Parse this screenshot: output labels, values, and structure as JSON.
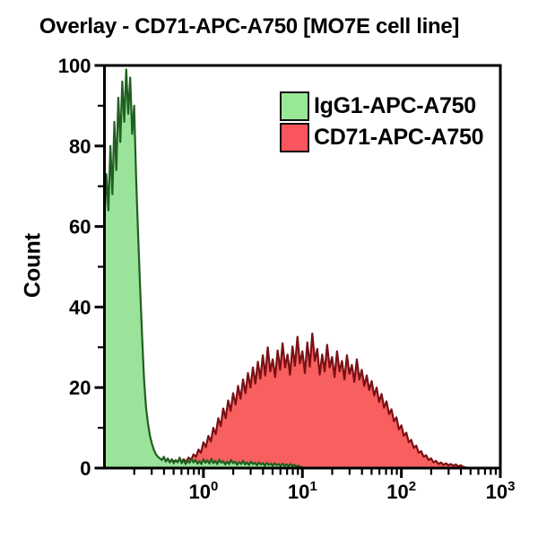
{
  "chart_data": {
    "type": "area",
    "subtype": "flow-cytometry-histogram-overlay",
    "title": "Overlay - CD71-APC-A750 [MO7E cell line]",
    "xlabel": "",
    "ylabel": "Count",
    "x_scale": "log10",
    "x_log_range": [
      -1,
      3
    ],
    "y_range": [
      0,
      100
    ],
    "y_major_ticks": [
      0,
      20,
      40,
      60,
      80,
      100
    ],
    "y_minor_ticks": [
      10,
      30,
      50,
      70,
      90
    ],
    "x_major_tick_exponents": [
      0,
      1,
      2,
      3
    ],
    "x_tick_label_base": "10",
    "grid": false,
    "legend_position": "top-right-inside",
    "frame_color": "#000000",
    "draw_order": [
      "CD71-APC-A750",
      "IgG1-APC-A750"
    ],
    "series": [
      {
        "name": "IgG1-APC-A750",
        "legend_fill": "#98e898",
        "fill": "#9be39b",
        "stroke": "#215e21",
        "x_start_log": -1.0,
        "x_step_log": 0.02,
        "counts": [
          62,
          73,
          64,
          80,
          68,
          86,
          74,
          92,
          81,
          96,
          86,
          99,
          88,
          97,
          83,
          90,
          72,
          58,
          45,
          33,
          22,
          15,
          11,
          8,
          6,
          4.5,
          3.4,
          2.8,
          2.4,
          2,
          2.8,
          1.6,
          2.4,
          1.4,
          2.2,
          1.2,
          2,
          1.4,
          2.6,
          1.2,
          2,
          1,
          1.8,
          1.3,
          2.4,
          1.4,
          2,
          1.1,
          1.7,
          1,
          2.2,
          1.3,
          1.9,
          1.1,
          2.3,
          1.2,
          1.8,
          1,
          2.1,
          1.3,
          1.7,
          0.9,
          1.6,
          1,
          2,
          1.2,
          1.6,
          0.8,
          1.5,
          1,
          1.8,
          0.9,
          1.4,
          0.8,
          1.6,
          1,
          1.3,
          0.7,
          1.4,
          0.9,
          1.2,
          0.6,
          1.3,
          0.8,
          1.1,
          0.6,
          1.2,
          0.7,
          1,
          0.5,
          1.1,
          0.6,
          0.9,
          0.5,
          1,
          0.5,
          0.8,
          0.4,
          0.6,
          0.3,
          0.2,
          0
        ]
      },
      {
        "name": "CD71-APC-A750",
        "legend_fill": "#fa545c",
        "fill": "#f85f5f",
        "stroke": "#7a1014",
        "x_start_log": -0.55,
        "x_step_log": 0.025,
        "counts": [
          0,
          0.4,
          0.9,
          0.5,
          1.2,
          0.7,
          1.4,
          0.9,
          1.6,
          1,
          1.8,
          1.2,
          2,
          1.4,
          2.2,
          1.6,
          2.6,
          2,
          3.4,
          2.8,
          4.6,
          3.8,
          6.4,
          5.2,
          8,
          6.6,
          10,
          8.4,
          12.4,
          10.4,
          14.8,
          12.4,
          16.8,
          14.2,
          18.6,
          15.8,
          20.4,
          17.2,
          22,
          18.6,
          23.6,
          20,
          25,
          21,
          26.4,
          22.2,
          28,
          23,
          30,
          24,
          27,
          22.6,
          29.2,
          24.4,
          31,
          25,
          28.2,
          23.2,
          30.2,
          25.4,
          32.6,
          26,
          29,
          23.6,
          31.2,
          25.2,
          33.4,
          26.6,
          29.6,
          23.2,
          28.2,
          24,
          30.6,
          25,
          27.6,
          22.6,
          29,
          24,
          26.6,
          22,
          28,
          23.4,
          25.6,
          21.4,
          27,
          22,
          24.4,
          20.4,
          23,
          19.4,
          21.6,
          18,
          20,
          16.4,
          18.4,
          15,
          16.6,
          13.4,
          14.6,
          11.6,
          12.6,
          9.6,
          10.6,
          8,
          8.8,
          6.4,
          7,
          5,
          5.6,
          3.8,
          4.2,
          2.8,
          3.2,
          2,
          2.4,
          1.4,
          1.8,
          1,
          1.4,
          0.8,
          1.2,
          0.7,
          1,
          0.6,
          0.9,
          0.4,
          0.7,
          0.3,
          0.15,
          0
        ]
      }
    ]
  }
}
